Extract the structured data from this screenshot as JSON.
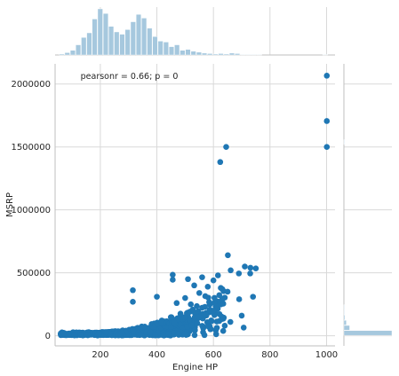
{
  "chart_data": {
    "type": "scatter",
    "title": "",
    "xlabel": "Engine HP",
    "ylabel": "MSRP",
    "xlim": [
      40,
      1030
    ],
    "ylim": [
      -80000,
      2160000
    ],
    "x_ticks": [
      200,
      400,
      600,
      800,
      1000
    ],
    "y_ticks": [
      0,
      500000,
      1000000,
      1500000,
      2000000
    ],
    "grid": true,
    "annotation": "pearsonr = 0.66; p = 0",
    "colors": {
      "points": "#1f77b4",
      "histogram": "#a6c8de",
      "grid": "#d9d9d9",
      "spine": "#bfbfbf"
    },
    "outliers": [
      {
        "x": 1001,
        "y": 2065902
      },
      {
        "x": 1001,
        "y": 1705769
      },
      {
        "x": 1001,
        "y": 1500000
      },
      {
        "x": 645,
        "y": 1500000
      },
      {
        "x": 624,
        "y": 1380000
      },
      {
        "x": 651,
        "y": 640000
      },
      {
        "x": 750,
        "y": 535000
      },
      {
        "x": 731,
        "y": 540000
      },
      {
        "x": 711,
        "y": 550000
      },
      {
        "x": 661,
        "y": 520000
      },
      {
        "x": 690,
        "y": 495000
      },
      {
        "x": 730,
        "y": 495000
      },
      {
        "x": 616,
        "y": 480000
      },
      {
        "x": 600,
        "y": 440000
      },
      {
        "x": 560,
        "y": 465000
      },
      {
        "x": 510,
        "y": 450000
      },
      {
        "x": 456,
        "y": 485000
      },
      {
        "x": 456,
        "y": 445000
      },
      {
        "x": 532,
        "y": 400000
      },
      {
        "x": 580,
        "y": 390000
      },
      {
        "x": 626,
        "y": 380000
      },
      {
        "x": 650,
        "y": 350000
      },
      {
        "x": 740,
        "y": 310000
      },
      {
        "x": 691,
        "y": 290000
      },
      {
        "x": 315,
        "y": 362000
      },
      {
        "x": 400,
        "y": 310000
      },
      {
        "x": 315,
        "y": 270000
      },
      {
        "x": 550,
        "y": 340000
      },
      {
        "x": 500,
        "y": 300000
      },
      {
        "x": 470,
        "y": 260000
      },
      {
        "x": 520,
        "y": 250000
      },
      {
        "x": 700,
        "y": 160000
      },
      {
        "x": 707,
        "y": 65000
      },
      {
        "x": 640,
        "y": 80000
      },
      {
        "x": 660,
        "y": 110000
      },
      {
        "x": 600,
        "y": 200000
      },
      {
        "x": 570,
        "y": 230000
      }
    ],
    "dense_bands": [
      {
        "x_from": 60,
        "x_to": 300,
        "y_peak": 35000,
        "count": 260
      },
      {
        "x_from": 200,
        "x_to": 420,
        "y_peak": 70000,
        "count": 200
      },
      {
        "x_from": 300,
        "x_to": 520,
        "y_peak": 160000,
        "count": 160
      },
      {
        "x_from": 380,
        "x_to": 640,
        "y_peak": 300000,
        "count": 120
      },
      {
        "x_from": 450,
        "x_to": 640,
        "y_peak": 420000,
        "count": 45
      }
    ],
    "x_histogram": {
      "bin_start": 55,
      "bin_width": 19.4,
      "counts": [
        2,
        5,
        10,
        22,
        38,
        48,
        78,
        100,
        90,
        62,
        50,
        45,
        55,
        72,
        88,
        80,
        58,
        40,
        30,
        28,
        18,
        22,
        10,
        12,
        8,
        6,
        4,
        3,
        2,
        3,
        2,
        4,
        3,
        1,
        1,
        1,
        1,
        0,
        0,
        0,
        0,
        0,
        0,
        0,
        0,
        0,
        0,
        0,
        1
      ]
    },
    "y_histogram": {
      "bin_start": 0,
      "bin_width": 41000,
      "counts": [
        100,
        12,
        5,
        2,
        1,
        1,
        0,
        0,
        0,
        0,
        0,
        0,
        0,
        0,
        0,
        0,
        0,
        0,
        0,
        0,
        0,
        0,
        0,
        0,
        0,
        0,
        0,
        0,
        0,
        0,
        0,
        0,
        0,
        0,
        0,
        0,
        0,
        1,
        0,
        0,
        0,
        0,
        0,
        0,
        0,
        0,
        0,
        0,
        0,
        0,
        0
      ]
    }
  }
}
